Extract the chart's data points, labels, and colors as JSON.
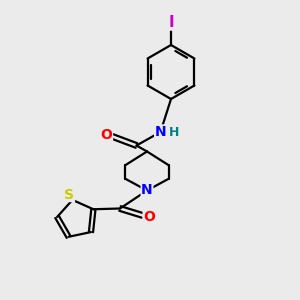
{
  "background_color": "#ebebeb",
  "bond_color": "#000000",
  "atom_colors": {
    "N": "#0000ff",
    "O": "#ff0000",
    "S": "#cccc00",
    "I": "#cc00cc",
    "H": "#008080",
    "C": "#000000"
  },
  "font_size": 10
}
